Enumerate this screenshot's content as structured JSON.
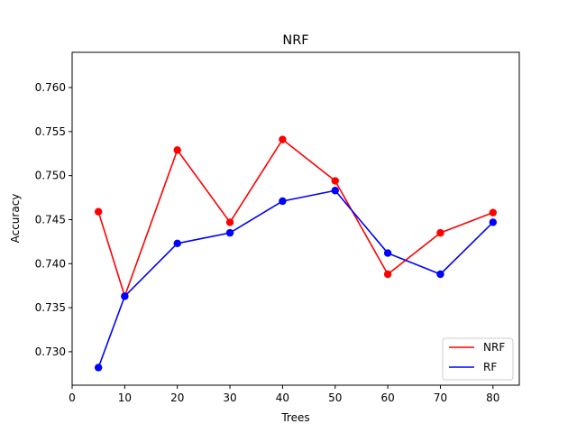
{
  "chart_data": {
    "type": "line",
    "title": "NRF",
    "xlabel": "Trees",
    "ylabel": "Accuracy",
    "xlim": [
      0,
      85
    ],
    "ylim": [
      0.7262,
      0.764
    ],
    "x": [
      5,
      10,
      20,
      30,
      40,
      50,
      60,
      70,
      80
    ],
    "xticks": [
      0,
      10,
      20,
      30,
      40,
      50,
      60,
      70,
      80
    ],
    "yticks": [
      0.73,
      0.735,
      0.74,
      0.745,
      0.75,
      0.755,
      0.76
    ],
    "grid": false,
    "legend_position": "bottom-right",
    "series": [
      {
        "name": "NRF",
        "color": "#ff0000",
        "values": [
          0.7459,
          0.7363,
          0.7529,
          0.7447,
          0.7541,
          0.7494,
          0.7388,
          0.7435,
          0.7458
        ]
      },
      {
        "name": "RF",
        "color": "#0000ff",
        "values": [
          0.7282,
          0.7363,
          0.7423,
          0.7435,
          0.7471,
          0.7483,
          0.7412,
          0.7388,
          0.7447
        ]
      }
    ]
  }
}
